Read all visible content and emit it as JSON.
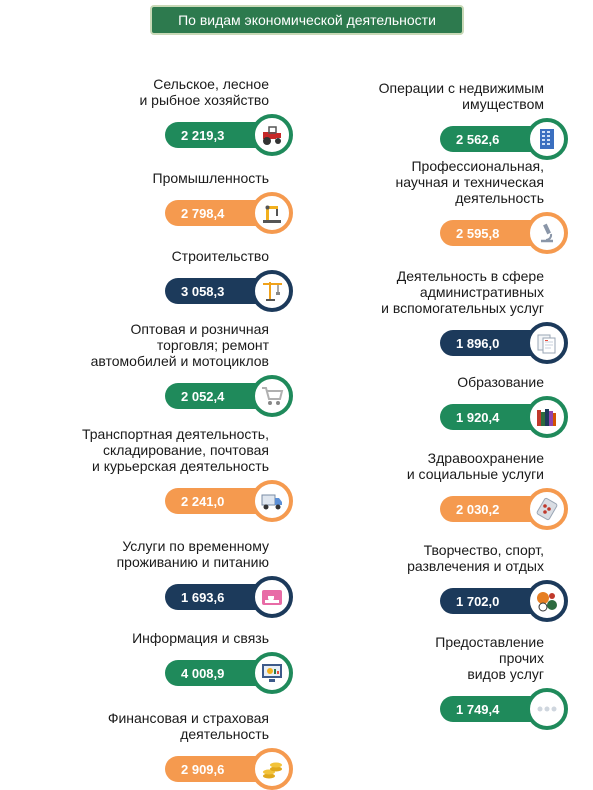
{
  "header": {
    "title": "По видам экономической деятельности"
  },
  "colors": {
    "green": "#1f8a5b",
    "orange": "#f59a4f",
    "navy": "#1c3a5b",
    "header": "#2d7a4e"
  },
  "chart_data": {
    "type": "table",
    "units": "",
    "left": [
      {
        "label": [
          "Сельское, лесное",
          "и рыбное хозяйство"
        ],
        "value": "2 219,3",
        "v": 2219.3,
        "color": "green",
        "icon": "tractor-icon"
      },
      {
        "label": [
          "Промышленность"
        ],
        "value": "2 798,4",
        "v": 2798.4,
        "color": "orange",
        "icon": "industrial-robot-icon"
      },
      {
        "label": [
          "Строительство"
        ],
        "value": "3 058,3",
        "v": 3058.3,
        "color": "navy",
        "icon": "crane-icon"
      },
      {
        "label": [
          "Оптовая и розничная",
          "торговля; ремонт",
          "автомобилей и мотоциклов"
        ],
        "value": "2 052,4",
        "v": 2052.4,
        "color": "green",
        "icon": "shopping-cart-icon"
      },
      {
        "label": [
          "Транспортная деятельность,",
          "складирование, почтовая",
          "и курьерская деятельность"
        ],
        "value": "2 241,0",
        "v": 2241.0,
        "color": "orange",
        "icon": "truck-icon"
      },
      {
        "label": [
          "Услуги по временному",
          "проживанию и питанию"
        ],
        "value": "1 693,6",
        "v": 1693.6,
        "color": "navy",
        "icon": "hotel-sign-icon"
      },
      {
        "label": [
          "Информация и связь"
        ],
        "value": "4 008,9",
        "v": 4008.9,
        "color": "green",
        "icon": "monitor-chart-icon"
      },
      {
        "label": [
          "Финансовая и страховая",
          "деятельность"
        ],
        "value": "2 909,6",
        "v": 2909.6,
        "color": "orange",
        "icon": "coins-icon"
      }
    ],
    "right": [
      {
        "label": [
          "Операции с недвижимым",
          "имуществом"
        ],
        "value": "2 562,6",
        "v": 2562.6,
        "color": "green",
        "icon": "building-icon"
      },
      {
        "label": [
          "Профессиональная,",
          "научная и техническая",
          "деятельность"
        ],
        "value": "2 595,8",
        "v": 2595.8,
        "color": "orange",
        "icon": "microscope-icon"
      },
      {
        "label": [
          "Деятельность в сфере",
          "административных",
          "и вспомогательных услуг"
        ],
        "value": "1 896,0",
        "v": 1896.0,
        "color": "navy",
        "icon": "documents-icon"
      },
      {
        "label": [
          "Образование"
        ],
        "value": "1 920,4",
        "v": 1920.4,
        "color": "green",
        "icon": "books-icon"
      },
      {
        "label": [
          "Здравоохранение",
          "и социальные услуги"
        ],
        "value": "2 030,2",
        "v": 2030.2,
        "color": "orange",
        "icon": "pills-icon"
      },
      {
        "label": [
          "Творчество, спорт,",
          "развлечения и отдых"
        ],
        "value": "1 702,0",
        "v": 1702.0,
        "color": "navy",
        "icon": "sports-balls-icon"
      },
      {
        "label": [
          "Предоставление",
          "прочих",
          "видов услуг"
        ],
        "value": "1 749,4",
        "v": 1749.4,
        "color": "green",
        "icon": "ellipsis-icon"
      }
    ]
  }
}
